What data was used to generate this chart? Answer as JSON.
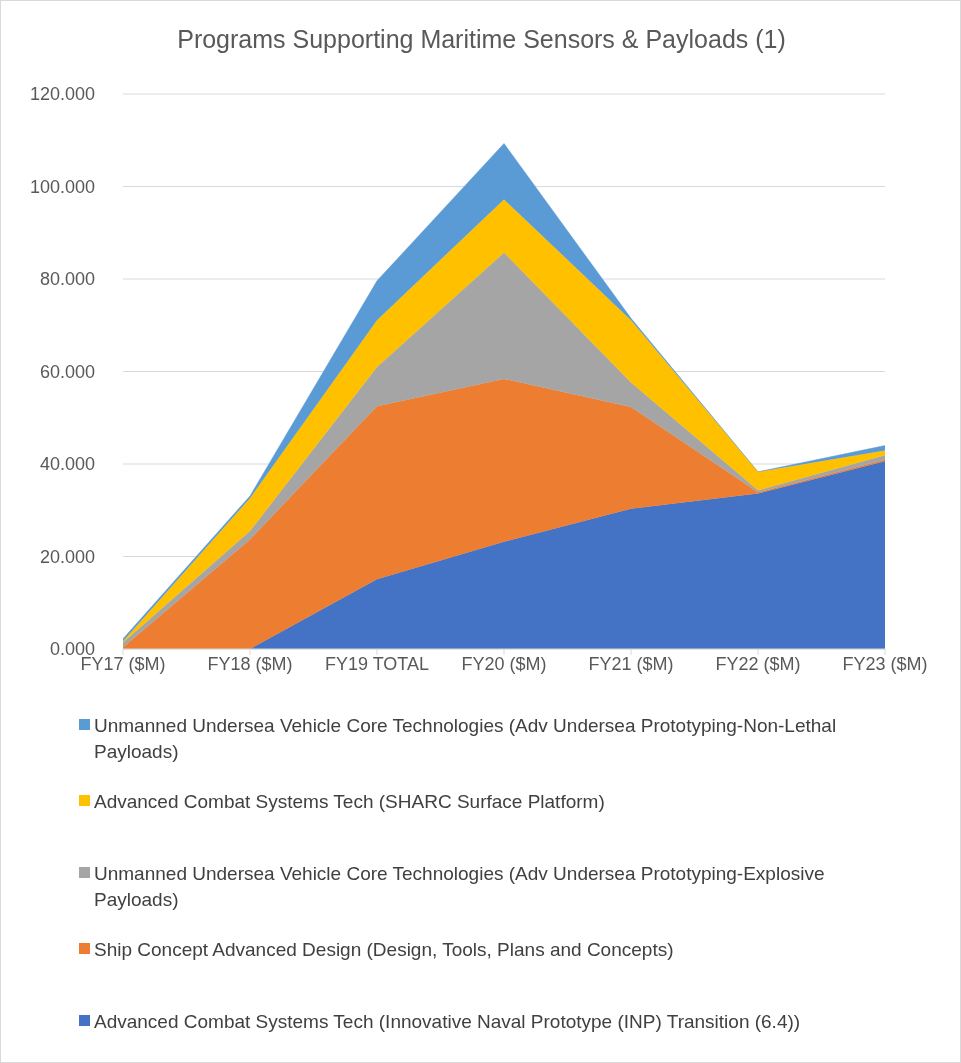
{
  "chart_data": {
    "type": "area",
    "title": "Programs Supporting Maritime Sensors & Payloads (1)",
    "categories": [
      "FY17 ($M)",
      "FY18 ($M)",
      "FY19 TOTAL",
      "FY20 ($M)",
      "FY21 ($M)",
      "FY22 ($M)",
      "FY23 ($M)"
    ],
    "stacked": true,
    "series": [
      {
        "name": "Advanced Combat Systems Tech (Innovative Naval Prototype (INP) Transition (6.4))",
        "color": "#4472c4",
        "values": [
          0,
          0,
          15.1,
          23.2,
          30.3,
          33.6,
          40.6
        ]
      },
      {
        "name": "Ship Concept Advanced Design (Design, Tools, Plans and Concepts)",
        "color": "#ed7d31",
        "values": [
          0.4,
          23.7,
          37.4,
          35.2,
          22.0,
          0.3,
          0.3
        ]
      },
      {
        "name": "Unmanned Undersea Vehicle Core Technologies (Adv Undersea Prototyping-Explosive Payloads)",
        "color": "#a5a5a5",
        "values": [
          1.0,
          1.8,
          8.5,
          27.3,
          5.3,
          0.4,
          1.0
        ]
      },
      {
        "name": "Advanced Combat Systems Tech (SHARC Surface Platform)",
        "color": "#ffc000",
        "values": [
          0.3,
          7.1,
          10.1,
          11.5,
          13.5,
          4.0,
          1.0
        ]
      },
      {
        "name": "Unmanned Undersea Vehicle Core Technologies (Adv Undersea Prototyping-Non-Lethal Payloads)",
        "color": "#5b9bd5",
        "values": [
          0.5,
          0.5,
          8.5,
          12.1,
          0.4,
          0,
          1.1
        ]
      }
    ],
    "ylim": [
      0,
      120
    ],
    "yticks": [
      {
        "value": 0,
        "label": "0.000"
      },
      {
        "value": 20,
        "label": "20.000"
      },
      {
        "value": 40,
        "label": "40.000"
      },
      {
        "value": 60,
        "label": "60.000"
      },
      {
        "value": 80,
        "label": "80.000"
      },
      {
        "value": 100,
        "label": "100.000"
      },
      {
        "value": 120,
        "label": "120.000"
      }
    ],
    "grid": "y",
    "legend": "bottom"
  }
}
